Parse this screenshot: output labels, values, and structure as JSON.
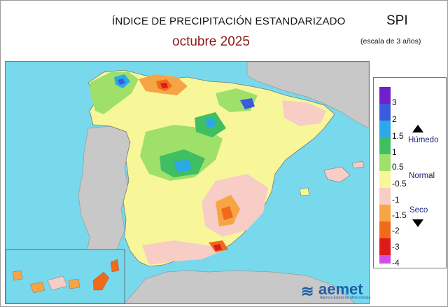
{
  "header": {
    "title": "ÍNDICE DE PRECIPITACIÓN ESTANDARIZADO",
    "subtitle": "octubre  2025",
    "index_name": "SPI",
    "scale_note": "(escala de 3 años)"
  },
  "legend": {
    "items": [
      {
        "label": "3",
        "color": "#6f20c8"
      },
      {
        "label": "2",
        "color": "#3a5ae0"
      },
      {
        "label": "1.5",
        "color": "#2aa9e6"
      },
      {
        "label": "1",
        "color": "#3fbf62"
      },
      {
        "label": "0.5",
        "color": "#9ee06a"
      },
      {
        "label": "-0.5",
        "color": "#f7f79a"
      },
      {
        "label": "-1",
        "color": "#f7cdc6"
      },
      {
        "label": "-1.5",
        "color": "#f6a445"
      },
      {
        "label": "-2",
        "color": "#f06a1a"
      },
      {
        "label": "-3",
        "color": "#e01a1a"
      },
      {
        "label": "-4",
        "color": "#d24ee6"
      }
    ],
    "wet_label": "Húmedo",
    "normal_label": "Normal",
    "dry_label": "Seco"
  },
  "map": {
    "sea_color": "#78d9ec",
    "land_outside_color": "#c8c8c8",
    "dominant_color": "#f7f79a"
  },
  "logo": {
    "brand": "aemet",
    "tagline": "Agencia Estatal de Meteorología"
  }
}
